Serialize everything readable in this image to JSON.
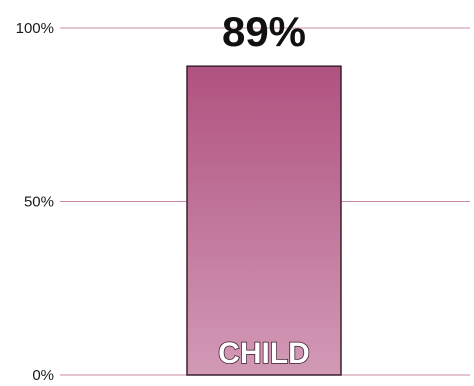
{
  "chart_data": {
    "type": "bar",
    "categories": [
      "CHILD"
    ],
    "values": [
      89
    ],
    "data_labels": [
      "89%"
    ],
    "ylim": [
      0,
      100
    ],
    "yticks": [
      {
        "value": 0,
        "label": "0%"
      },
      {
        "value": 50,
        "label": "50%"
      },
      {
        "value": 100,
        "label": "100%"
      }
    ],
    "grid": true,
    "legend": "none",
    "colors": {
      "bar_top": "#b0527f",
      "bar_bottom": "#d29ab6",
      "bar_border": "#3a2030",
      "grid": "#c98aa6"
    }
  }
}
